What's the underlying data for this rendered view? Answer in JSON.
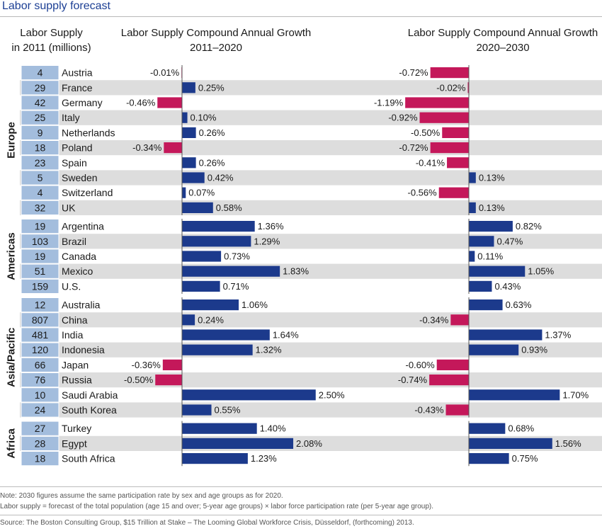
{
  "title": "Labor supply forecast",
  "headers": {
    "supply_line1": "Labor Supply",
    "supply_line2": "in 2011 (millions)",
    "growth1_line1": "Labor Supply Compound Annual Growth",
    "growth1_line2": "2011–2020",
    "growth2_line1": "Labor Supply Compound Annual Growth",
    "growth2_line2": "2020–2030"
  },
  "chart_data": {
    "type": "bar",
    "orientation": "horizontal",
    "value_format": "percent",
    "groups": [
      {
        "name": "Europe",
        "rows": [
          {
            "country": "Austria",
            "supply": 4,
            "g1": -0.01,
            "g2": -0.72
          },
          {
            "country": "France",
            "supply": 29,
            "g1": 0.25,
            "g2": -0.02
          },
          {
            "country": "Germany",
            "supply": 42,
            "g1": -0.46,
            "g2": -1.19
          },
          {
            "country": "Italy",
            "supply": 25,
            "g1": 0.1,
            "g2": -0.92
          },
          {
            "country": "Netherlands",
            "supply": 9,
            "g1": 0.26,
            "g2": -0.5
          },
          {
            "country": "Poland",
            "supply": 18,
            "g1": -0.34,
            "g2": -0.72
          },
          {
            "country": "Spain",
            "supply": 23,
            "g1": 0.26,
            "g2": -0.41
          },
          {
            "country": "Sweden",
            "supply": 5,
            "g1": 0.42,
            "g2": 0.13
          },
          {
            "country": "Switzerland",
            "supply": 4,
            "g1": 0.07,
            "g2": -0.56
          },
          {
            "country": "UK",
            "supply": 32,
            "g1": 0.58,
            "g2": 0.13
          }
        ]
      },
      {
        "name": "Americas",
        "rows": [
          {
            "country": "Argentina",
            "supply": 19,
            "g1": 1.36,
            "g2": 0.82
          },
          {
            "country": "Brazil",
            "supply": 103,
            "g1": 1.29,
            "g2": 0.47
          },
          {
            "country": "Canada",
            "supply": 19,
            "g1": 0.73,
            "g2": 0.11
          },
          {
            "country": "Mexico",
            "supply": 51,
            "g1": 1.83,
            "g2": 1.05
          },
          {
            "country": "U.S.",
            "supply": 159,
            "g1": 0.71,
            "g2": 0.43
          }
        ]
      },
      {
        "name": "Asia/Pacific",
        "rows": [
          {
            "country": "Australia",
            "supply": 12,
            "g1": 1.06,
            "g2": 0.63
          },
          {
            "country": "China",
            "supply": 807,
            "g1": 0.24,
            "g2": -0.34
          },
          {
            "country": "India",
            "supply": 481,
            "g1": 1.64,
            "g2": 1.37
          },
          {
            "country": "Indonesia",
            "supply": 120,
            "g1": 1.32,
            "g2": 0.93
          },
          {
            "country": "Japan",
            "supply": 66,
            "g1": -0.36,
            "g2": -0.6
          },
          {
            "country": "Russia",
            "supply": 76,
            "g1": -0.5,
            "g2": -0.74
          },
          {
            "country": "Saudi Arabia",
            "supply": 10,
            "g1": 2.5,
            "g2": 1.7
          },
          {
            "country": "South Korea",
            "supply": 24,
            "g1": 0.55,
            "g2": -0.43
          }
        ]
      },
      {
        "name": "Africa",
        "rows": [
          {
            "country": "Turkey",
            "supply": 27,
            "g1": 1.4,
            "g2": 0.68
          },
          {
            "country": "Egypt",
            "supply": 28,
            "g1": 2.08,
            "g2": 1.56
          },
          {
            "country": "South Africa",
            "supply": 18,
            "g1": 1.23,
            "g2": 0.75
          }
        ]
      }
    ]
  },
  "colors": {
    "positive_bar": "#1c3a8c",
    "negative_bar": "#c4185a",
    "supply_cell": "#a3bddd",
    "stripe": "#dddddd",
    "title": "#1c3f94",
    "axis": "#555555"
  },
  "notes": {
    "note1": "Note:  2030 figures assume the same participation rate by sex and age groups as for 2020.",
    "note2": "Labor supply = forecast of the total population (age 15 and over; 5-year age groups) × labor force participation rate (per 5-year age group).",
    "source": "Source: The Boston Consulting Group, $15 Trillion at Stake – The Looming Global Workforce Crisis, Düsseldorf, (forthcoming) 2013."
  }
}
